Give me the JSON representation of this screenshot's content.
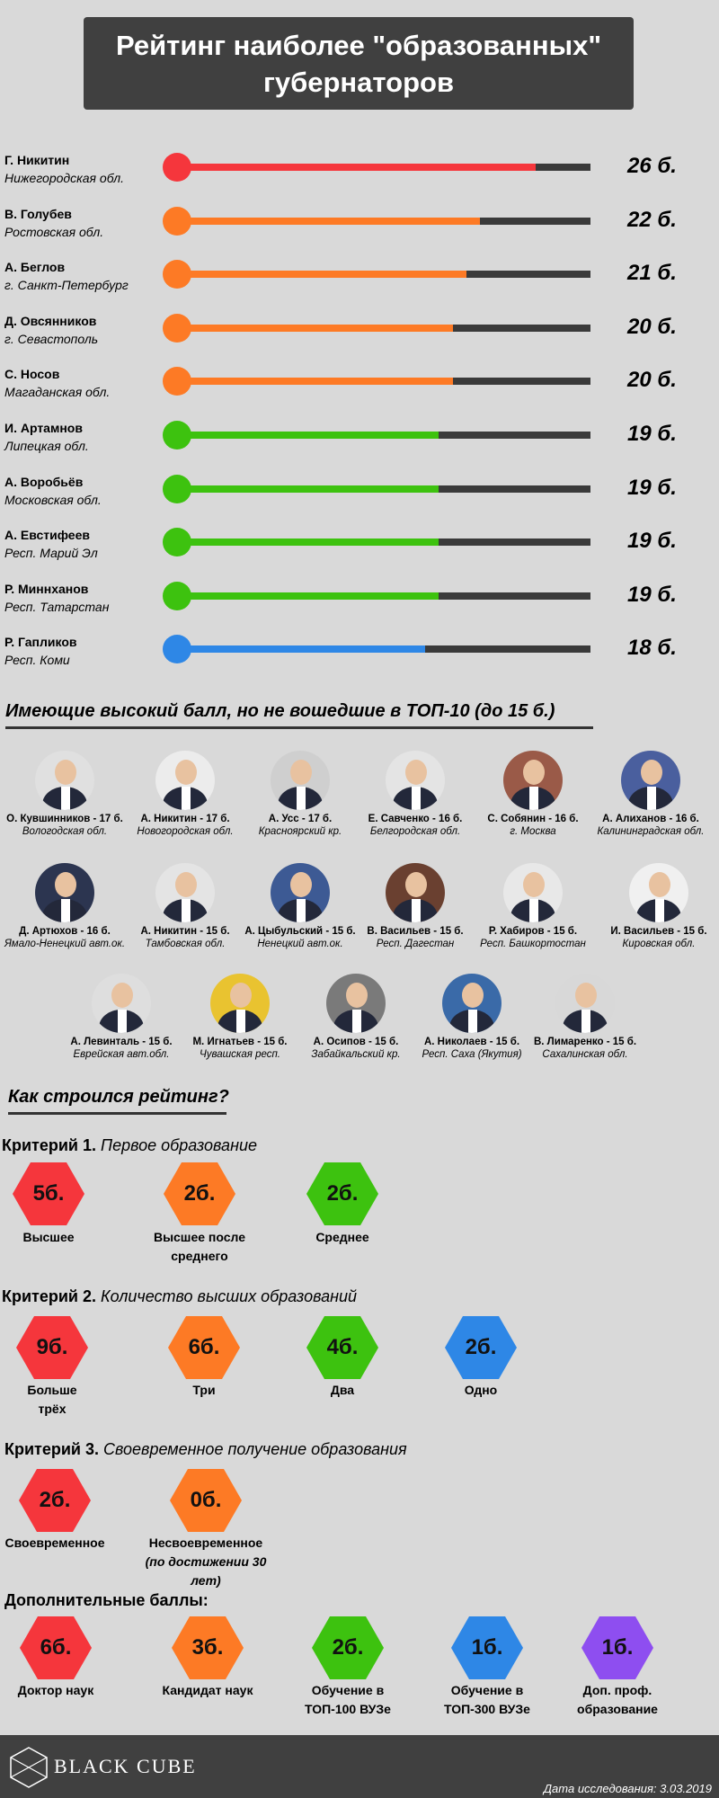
{
  "title_line1": "Рейтинг наиболее \"образованных\"",
  "title_line2": "губернаторов",
  "chart_data": {
    "type": "bar",
    "title": "Рейтинг наиболее \"образованных\" губернаторов",
    "max": 30,
    "rows": [
      {
        "name": "Г. Никитин",
        "region": "Нижегородская обл.",
        "value": 26,
        "label": "26 б.",
        "color": "#f5363c"
      },
      {
        "name": "В. Голубев",
        "region": "Ростовская обл.",
        "value": 22,
        "label": "22 б.",
        "color": "#fd7a25"
      },
      {
        "name": "А. Беглов",
        "region": "г. Санкт-Петербург",
        "value": 21,
        "label": "21 б.",
        "color": "#fd7a25"
      },
      {
        "name": "Д. Овсянников",
        "region": "г. Севастополь",
        "value": 20,
        "label": "20 б.",
        "color": "#fd7a25"
      },
      {
        "name": "С. Носов",
        "region": "Магаданская обл.",
        "value": 20,
        "label": "20 б.",
        "color": "#fd7a25"
      },
      {
        "name": "И. Артамнов",
        "region": "Липецкая обл.",
        "value": 19,
        "label": "19 б.",
        "color": "#3dc20f"
      },
      {
        "name": "А. Воробьёв",
        "region": "Московская обл.",
        "value": 19,
        "label": "19 б.",
        "color": "#3dc20f"
      },
      {
        "name": "А. Евстифеев",
        "region": "Респ. Марий Эл",
        "value": 19,
        "label": "19 б.",
        "color": "#3dc20f"
      },
      {
        "name": "Р. Миннханов",
        "region": "Респ. Татарстан",
        "value": 19,
        "label": "19 б.",
        "color": "#3dc20f"
      },
      {
        "name": "Р. Гапликов",
        "region": "Респ. Коми",
        "value": 18,
        "label": "18 б.",
        "color": "#2e87e6"
      }
    ]
  },
  "section_others": "Имеющие высокий балл, но не вошедшие в ТОП-10 (до 15 б.)",
  "others_row1": [
    {
      "name": "О. Кувшинников - 17 б.",
      "region": "Вологодская обл.",
      "bg": "#e0e0e0"
    },
    {
      "name": "А. Никитин - 17 б.",
      "region": "Новогородская обл.",
      "bg": "#ececec"
    },
    {
      "name": "А. Усс - 17 б.",
      "region": "Красноярский кр.",
      "bg": "#cfcfcf"
    },
    {
      "name": "Е. Савченко - 16 б.",
      "region": "Белгородская обл.",
      "bg": "#e4e4e4"
    },
    {
      "name": "С. Собянин - 16 б.",
      "region": "г. Москва",
      "bg": "#9a5a48"
    },
    {
      "name": "А. Алиханов - 16 б.",
      "region": "Калининградская обл.",
      "bg": "#4a5f9e"
    }
  ],
  "others_row2": [
    {
      "name": "Д. Артюхов - 16 б.",
      "region": "Ямало-Ненецкий авт.ок.",
      "bg": "#2c3550"
    },
    {
      "name": "А. Никитин - 15 б.",
      "region": "Тамбовская обл.",
      "bg": "#e4e4e4"
    },
    {
      "name": "А. Цыбульский - 15 б.",
      "region": "Ненецкий авт.ок.",
      "bg": "#3d5a94"
    },
    {
      "name": "В. Васильев - 15 б.",
      "region": "Респ. Дагестан",
      "bg": "#6a4030"
    },
    {
      "name": "Р. Хабиров - 15 б.",
      "region": "Респ. Башкортостан",
      "bg": "#e8e8e8"
    },
    {
      "name": "И. Васильев - 15 б.",
      "region": "Кировская обл.",
      "bg": "#f0f0f0"
    }
  ],
  "others_row3": [
    {
      "name": "А. Левинталь - 15 б.",
      "region": "Еврейская авт.обл.",
      "bg": "#dedede"
    },
    {
      "name": "М. Игнатьев - 15 б.",
      "region": "Чувашская респ.",
      "bg": "#e9c330"
    },
    {
      "name": "А. Осипов - 15 б.",
      "region": "Забайкальский кр.",
      "bg": "#7a7a7a"
    },
    {
      "name": "А. Николаев - 15 б.",
      "region": "Респ. Саха (Якутия)",
      "bg": "#3a6aa8"
    },
    {
      "name": "В. Лимаренко - 15 б.",
      "region": "Сахалинская обл.",
      "bg": "#d8d8d8"
    }
  ],
  "section_how": "Как строился рейтинг?",
  "criteria": [
    {
      "head": "Критерий 1.",
      "text": "Первое образование",
      "items": [
        {
          "value": "5б.",
          "l1": "Высшее",
          "l2": "",
          "color": "#f5363c"
        },
        {
          "value": "2б.",
          "l1": "Высшее после",
          "l2": "среднего",
          "color": "#fd7a25"
        },
        {
          "value": "2б.",
          "l1": "Среднее",
          "l2": "",
          "color": "#3dc20f"
        }
      ]
    },
    {
      "head": "Критерий 2.",
      "text": "Количество высших образований",
      "items": [
        {
          "value": "9б.",
          "l1": "Больше",
          "l2": "трёх",
          "color": "#f5363c"
        },
        {
          "value": "6б.",
          "l1": "Три",
          "l2": "",
          "color": "#fd7a25"
        },
        {
          "value": "4б.",
          "l1": "Два",
          "l2": "",
          "color": "#3dc20f"
        },
        {
          "value": "2б.",
          "l1": "Одно",
          "l2": "",
          "color": "#2e87e6"
        }
      ]
    },
    {
      "head": "Критерий 3.",
      "text": "Своевременное получение образования",
      "items": [
        {
          "value": "2б.",
          "l1": "Своевременное",
          "l2": "",
          "color": "#f5363c"
        },
        {
          "value": "0б.",
          "l1": "Несвоевременное",
          "l2": "(по достижении 30 лет)",
          "color": "#fd7a25"
        }
      ]
    }
  ],
  "extra_title": "Дополнительные баллы:",
  "extra": [
    {
      "value": "6б.",
      "l1": "Доктор наук",
      "l2": "",
      "color": "#f5363c"
    },
    {
      "value": "3б.",
      "l1": "Кандидат наук",
      "l2": "",
      "color": "#fd7a25"
    },
    {
      "value": "2б.",
      "l1": "Обучение в",
      "l2": "ТОП-100 ВУЗе",
      "color": "#3dc20f"
    },
    {
      "value": "1б.",
      "l1": "Обучение в",
      "l2": "ТОП-300 ВУЗе",
      "color": "#2e87e6"
    },
    {
      "value": "1б.",
      "l1": "Доп. проф.",
      "l2": "образование",
      "color": "#8e4ef0"
    }
  ],
  "footer": {
    "logo": "BLACK CUBE",
    "date": "Дата исследования: 3.03.2019"
  }
}
